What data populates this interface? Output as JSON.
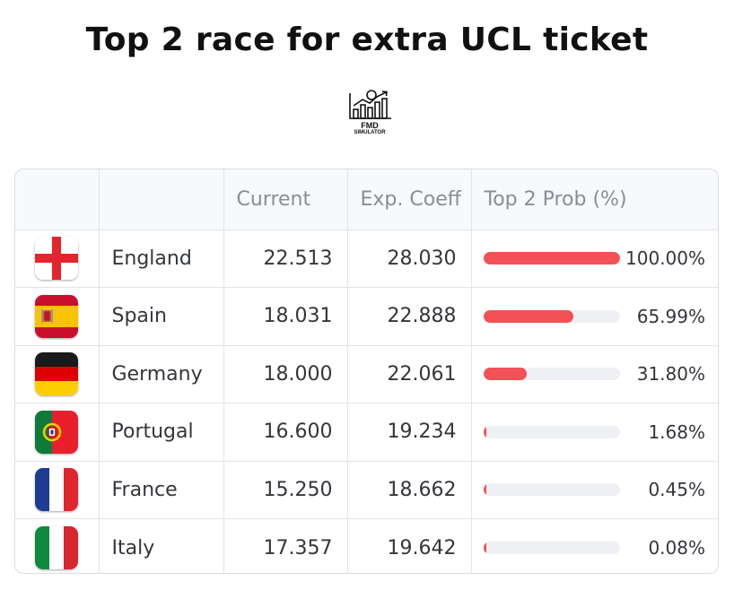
{
  "title": "Top 2 race for extra UCL ticket",
  "logo": {
    "line1": "FMD",
    "line2": "SIMULATOR"
  },
  "colors": {
    "bar": "#f25155",
    "track": "#eff0f4"
  },
  "chart_data": {
    "type": "table",
    "columns": [
      "",
      "",
      "Current",
      "Exp. Coeff",
      "Top 2 Prob (%)"
    ],
    "rows": [
      {
        "country": "England",
        "flag": "england-flag-icon",
        "current": "22.513",
        "exp_coeff": "28.030",
        "prob": 100.0,
        "prob_label": "100.00%"
      },
      {
        "country": "Spain",
        "flag": "spain-flag-icon",
        "current": "18.031",
        "exp_coeff": "22.888",
        "prob": 65.99,
        "prob_label": "65.99%"
      },
      {
        "country": "Germany",
        "flag": "germany-flag-icon",
        "current": "18.000",
        "exp_coeff": "22.061",
        "prob": 31.8,
        "prob_label": "31.80%"
      },
      {
        "country": "Portugal",
        "flag": "portugal-flag-icon",
        "current": "16.600",
        "exp_coeff": "19.234",
        "prob": 1.68,
        "prob_label": "1.68%"
      },
      {
        "country": "France",
        "flag": "france-flag-icon",
        "current": "15.250",
        "exp_coeff": "18.662",
        "prob": 0.45,
        "prob_label": "0.45%"
      },
      {
        "country": "Italy",
        "flag": "italy-flag-icon",
        "current": "17.357",
        "exp_coeff": "19.642",
        "prob": 0.08,
        "prob_label": "0.08%"
      }
    ]
  }
}
